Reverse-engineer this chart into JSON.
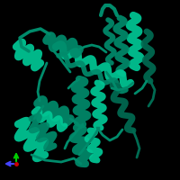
{
  "background_color": "#000000",
  "protein_color_main": "#008B6B",
  "protein_color_light": "#00C896",
  "protein_color_dark": "#006B52",
  "figsize": [
    2.0,
    2.0
  ],
  "dpi": 100
}
